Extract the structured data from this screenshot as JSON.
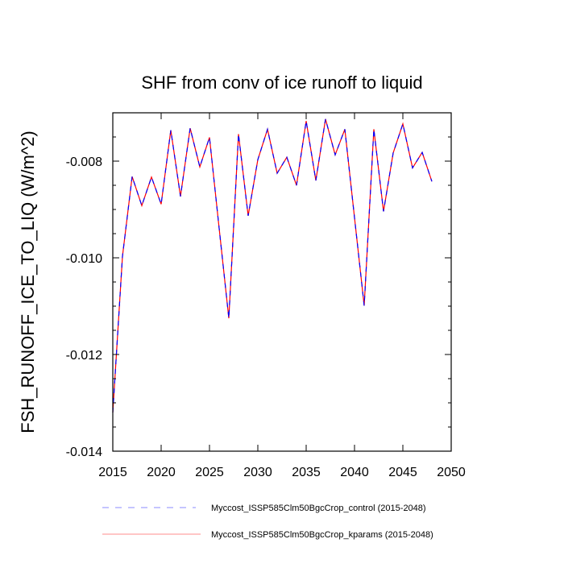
{
  "chart_data": {
    "type": "line",
    "title": "SHF from conv of ice runoff to liquid",
    "xlabel": "",
    "ylabel": "FSH_RUNOFF_ICE_TO_LIQ  (W/m^2)",
    "xlim": [
      2015,
      2050
    ],
    "ylim": [
      -0.014,
      -0.007
    ],
    "xticks": [
      2015,
      2020,
      2025,
      2030,
      2035,
      2040,
      2045,
      2050
    ],
    "xtick_labels": [
      "2015",
      "2020",
      "2025",
      "2030",
      "2035",
      "2040",
      "2045",
      "2050"
    ],
    "yticks": [
      -0.014,
      -0.012,
      -0.01,
      -0.008
    ],
    "ytick_labels": [
      "-0.014",
      "-0.012",
      "-0.010",
      "-0.008"
    ],
    "grid": false,
    "legend_placement": "bottom",
    "x": [
      2015,
      2016,
      2017,
      2018,
      2019,
      2020,
      2021,
      2022,
      2023,
      2024,
      2025,
      2026,
      2027,
      2028,
      2029,
      2030,
      2031,
      2032,
      2033,
      2034,
      2035,
      2036,
      2037,
      2038,
      2039,
      2040,
      2041,
      2042,
      2043,
      2044,
      2045,
      2046,
      2047,
      2048
    ],
    "series": [
      {
        "name": "Myccost_ISSP585Clm50BgcCrop_control (2015-2048)",
        "color": "#0000ff",
        "dash": "dashed",
        "values": [
          -0.0132,
          -0.00997,
          -0.00832,
          -0.00892,
          -0.00833,
          -0.00889,
          -0.00736,
          -0.00873,
          -0.00732,
          -0.00812,
          -0.00751,
          -0.00939,
          -0.01125,
          -0.00744,
          -0.00913,
          -0.00797,
          -0.00734,
          -0.00825,
          -0.00792,
          -0.0085,
          -0.00717,
          -0.0084,
          -0.00713,
          -0.00787,
          -0.00734,
          -0.00917,
          -0.01099,
          -0.00734,
          -0.00904,
          -0.00783,
          -0.00723,
          -0.00814,
          -0.00782,
          -0.00842
        ]
      },
      {
        "name": "Myccost_ISSP585Clm50BgcCrop_kparams (2015-2048)",
        "color": "#ff0000",
        "dash": "solid",
        "values": [
          -0.0132,
          -0.00997,
          -0.00832,
          -0.00892,
          -0.00833,
          -0.00889,
          -0.00736,
          -0.00873,
          -0.00732,
          -0.00812,
          -0.00751,
          -0.00939,
          -0.01125,
          -0.00744,
          -0.00913,
          -0.00797,
          -0.00734,
          -0.00825,
          -0.00792,
          -0.0085,
          -0.00717,
          -0.0084,
          -0.00713,
          -0.00787,
          -0.00734,
          -0.00917,
          -0.01099,
          -0.00734,
          -0.00904,
          -0.00783,
          -0.00723,
          -0.00814,
          -0.00782,
          -0.00842
        ]
      }
    ]
  }
}
